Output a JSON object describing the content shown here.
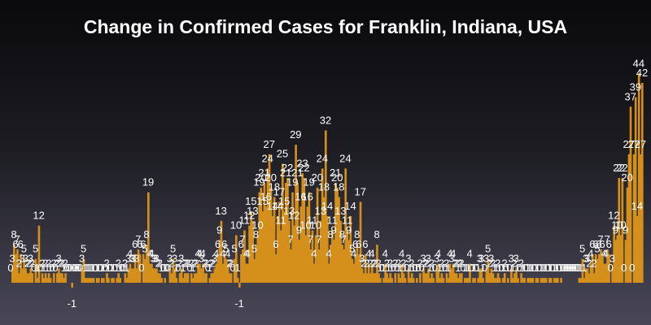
{
  "chart_data": {
    "type": "bar",
    "title": "Change in Confirmed Cases for Franklin, Indiana, USA",
    "xlabel": "",
    "ylabel": "",
    "ylim": [
      -2,
      46
    ],
    "bar_color": "#d4901a",
    "label_color": "#ffffff",
    "background_top": "#0a0a0c",
    "background_bottom": "#4a4858",
    "grid": false,
    "legend": "none",
    "values": [
      0,
      3,
      8,
      6,
      7,
      2,
      6,
      3,
      5,
      3,
      2,
      2,
      3,
      2,
      0,
      5,
      1,
      12,
      0,
      2,
      1,
      2,
      1,
      2,
      1,
      0,
      2,
      0,
      2,
      3,
      2,
      2,
      1,
      2,
      0,
      0,
      0,
      -1,
      0,
      0,
      0,
      0,
      0,
      3,
      5,
      1,
      1,
      1,
      1,
      1,
      1,
      0,
      1,
      1,
      0,
      1,
      1,
      0,
      2,
      1,
      0,
      1,
      1,
      0,
      1,
      2,
      1,
      0,
      0,
      2,
      1,
      3,
      4,
      3,
      3,
      6,
      3,
      7,
      6,
      0,
      6,
      5,
      8,
      19,
      4,
      4,
      3,
      3,
      3,
      2,
      2,
      1,
      0,
      1,
      0,
      0,
      3,
      2,
      5,
      3,
      1,
      0,
      2,
      3,
      1,
      2,
      2,
      2,
      0,
      2,
      1,
      2,
      2,
      4,
      4,
      3,
      4,
      2,
      2,
      0,
      1,
      2,
      2,
      3,
      4,
      6,
      9,
      13,
      4,
      6,
      5,
      4,
      2,
      2,
      0,
      5,
      10,
      1,
      -1,
      6,
      7,
      11,
      4,
      4,
      12,
      15,
      13,
      5,
      8,
      10,
      19,
      20,
      15,
      21,
      16,
      24,
      27,
      20,
      14,
      18,
      6,
      14,
      17,
      11,
      25,
      15,
      21,
      22,
      13,
      7,
      19,
      12,
      29,
      21,
      9,
      16,
      23,
      22,
      10,
      16,
      19,
      7,
      11,
      4,
      10,
      20,
      7,
      13,
      24,
      18,
      32,
      14,
      4,
      8,
      11,
      9,
      21,
      20,
      18,
      13,
      8,
      7,
      24,
      11,
      9,
      14,
      5,
      4,
      6,
      8,
      6,
      17,
      3,
      2,
      6,
      2,
      4,
      2,
      4,
      2,
      2,
      8,
      2,
      1,
      0,
      1,
      4,
      2,
      1,
      2,
      1,
      0,
      2,
      0,
      2,
      1,
      4,
      2,
      1,
      0,
      3,
      1,
      2,
      1,
      0,
      1,
      0,
      2,
      0,
      3,
      2,
      2,
      3,
      1,
      2,
      1,
      0,
      3,
      4,
      1,
      2,
      1,
      0,
      2,
      1,
      4,
      3,
      4,
      2,
      2,
      1,
      2,
      2,
      0,
      1,
      1,
      1,
      4,
      0,
      1,
      1,
      0,
      1,
      3,
      3,
      1,
      0,
      3,
      5,
      2,
      3,
      2,
      1,
      1,
      2,
      1,
      0,
      1,
      2,
      0,
      1,
      0,
      3,
      1,
      2,
      3,
      1,
      0,
      2,
      1,
      1,
      0,
      1,
      1,
      1,
      1,
      0,
      1,
      1,
      0,
      1,
      1,
      1,
      1,
      0,
      1,
      1,
      0,
      1,
      1,
      1,
      0,
      1,
      0,
      0,
      0,
      0,
      0,
      0,
      0,
      0,
      0,
      0,
      1,
      1,
      5,
      1,
      3,
      3,
      2,
      4,
      6,
      2,
      6,
      5,
      6,
      7,
      6,
      4,
      4,
      7,
      6,
      0,
      3,
      12,
      9,
      10,
      22,
      10,
      22,
      0,
      9,
      20,
      27,
      37,
      0,
      27,
      39,
      14,
      44,
      27,
      42
    ]
  }
}
